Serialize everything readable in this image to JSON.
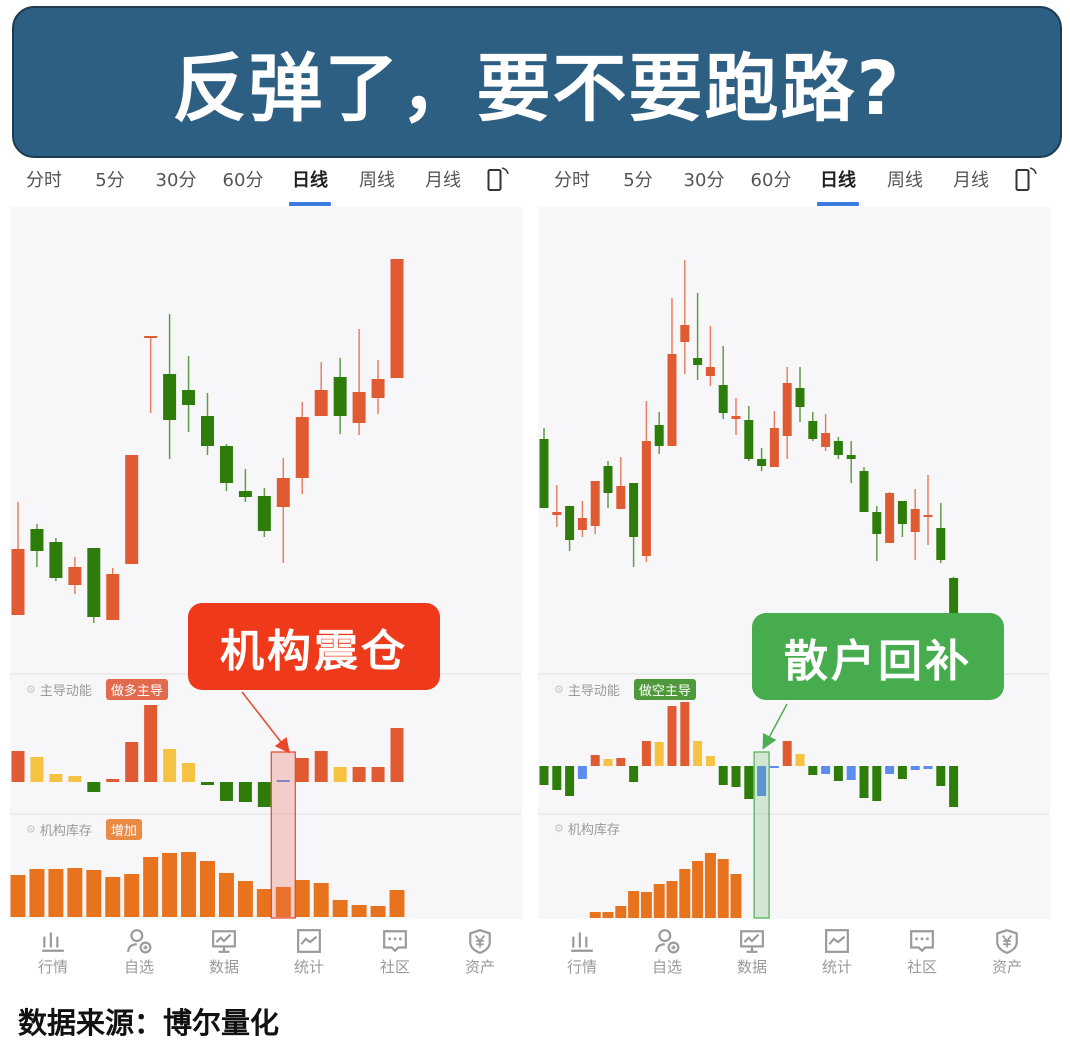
{
  "title": "反弹了，要不要跑路?",
  "tabs": [
    "分时",
    "5分",
    "30分",
    "60分",
    "日线",
    "周线",
    "月线"
  ],
  "active_tab": "日线",
  "rotate_icon": "rotate-screen-icon",
  "nav": [
    {
      "label": "行情",
      "icon": "bar-chart-icon"
    },
    {
      "label": "自选",
      "icon": "user-add-icon"
    },
    {
      "label": "数据",
      "icon": "monitor-chart-icon"
    },
    {
      "label": "统计",
      "icon": "line-chart-icon"
    },
    {
      "label": "社区",
      "icon": "chat-icon"
    },
    {
      "label": "资产",
      "icon": "yen-shield-icon"
    }
  ],
  "colors": {
    "up": "#e05a32",
    "down": "#2e7d0a",
    "weak_up": "#f5c242",
    "neutral": "#5b8def",
    "inventory": "#e8731f",
    "banner": "#2d5f82",
    "accent": "#3b7ddd"
  },
  "footer": "数据来源：博尔量化",
  "panels": [
    {
      "momentum_label": "主导动能",
      "momentum_badge": "做多主导",
      "badge_color": "#e26b4e",
      "inventory_label": "机构库存",
      "inventory_badge": "增加",
      "inv_badge_color": "#e98a45",
      "callout": "机构震仓",
      "callout_color": "#ee3a1b",
      "highlight_index": 14,
      "chart_data": {
        "type": "candlestick",
        "ylim": [
          2.8,
          49.3
        ],
        "candles": [
          [
            8.5,
            19.8,
            8.5,
            15.1
          ],
          [
            17.1,
            17.6,
            13.3,
            14.9
          ],
          [
            15.8,
            16.2,
            11.9,
            12.2
          ],
          [
            11.5,
            14.3,
            10.6,
            13.3
          ],
          [
            15.2,
            15.2,
            7.7,
            8.3
          ],
          [
            8.0,
            13.2,
            8.0,
            12.6
          ],
          [
            13.6,
            24.5,
            13.6,
            24.5
          ],
          [
            36.2,
            36.4,
            28.7,
            36.4
          ],
          [
            32.6,
            38.6,
            24.1,
            28.0
          ],
          [
            31.0,
            34.4,
            26.8,
            29.5
          ],
          [
            28.4,
            30.7,
            24.5,
            25.4
          ],
          [
            25.4,
            25.6,
            20.9,
            21.7
          ],
          [
            20.9,
            23.1,
            19.8,
            20.3
          ],
          [
            20.4,
            21.2,
            16.3,
            16.9
          ],
          [
            19.3,
            24.2,
            13.7,
            22.2
          ],
          [
            22.2,
            29.8,
            20.6,
            28.3
          ],
          [
            28.4,
            33.8,
            28.4,
            31.0
          ],
          [
            32.3,
            34.2,
            26.6,
            28.4
          ],
          [
            27.7,
            37.1,
            26.5,
            30.8
          ],
          [
            30.2,
            34.0,
            28.6,
            32.1
          ],
          [
            32.2,
            44.1,
            32.2,
            44.1
          ]
        ],
        "momentum": [
          [
            31,
            "up"
          ],
          [
            25,
            "weak_up"
          ],
          [
            8,
            "weak_up"
          ],
          [
            6,
            "weak_up"
          ],
          [
            -10,
            "down"
          ],
          [
            3,
            "up"
          ],
          [
            40,
            "up"
          ],
          [
            77,
            "up"
          ],
          [
            33,
            "weak_up"
          ],
          [
            19,
            "weak_up"
          ],
          [
            -3,
            "down"
          ],
          [
            -19,
            "down"
          ],
          [
            -20,
            "down"
          ],
          [
            -25,
            "down"
          ],
          [
            0,
            "neutral"
          ],
          [
            24,
            "up"
          ],
          [
            31,
            "up"
          ],
          [
            15,
            "weak_up"
          ],
          [
            15,
            "up"
          ],
          [
            15,
            "up"
          ],
          [
            54,
            "up"
          ]
        ],
        "inventory": [
          42,
          48,
          48,
          49,
          47,
          40,
          43,
          60,
          64,
          65,
          56,
          44,
          36,
          28,
          30,
          37,
          34,
          17,
          12,
          11,
          27
        ]
      }
    },
    {
      "momentum_label": "主导动能",
      "momentum_badge": "做空主导",
      "badge_color": "#4e9a3a",
      "inventory_label": "机构库存",
      "callout": "散户回补",
      "callout_color": "#47ac4d",
      "highlight_index": 17,
      "chart_data": {
        "type": "candlestick",
        "ylim": [
          2.8,
          49.3
        ],
        "candles": [
          [
            26.1,
            27.2,
            19.2,
            19.2
          ],
          [
            18.5,
            21.5,
            17.3,
            18.8
          ],
          [
            19.4,
            19.4,
            14.9,
            16.0
          ],
          [
            17.0,
            19.9,
            16.3,
            18.2
          ],
          [
            17.4,
            21.9,
            16.6,
            21.9
          ],
          [
            23.4,
            23.9,
            19.2,
            20.7
          ],
          [
            19.1,
            24.3,
            19.1,
            21.4
          ],
          [
            21.7,
            21.7,
            13.3,
            16.3
          ],
          [
            14.4,
            29.9,
            13.8,
            25.9
          ],
          [
            27.5,
            28.8,
            24.6,
            25.4
          ],
          [
            25.4,
            40.2,
            25.4,
            34.6
          ],
          [
            35.8,
            44.0,
            32.6,
            37.5
          ],
          [
            34.2,
            40.7,
            32.0,
            33.5
          ],
          [
            32.4,
            37.4,
            31.4,
            33.3
          ],
          [
            31.5,
            35.4,
            28.1,
            28.7
          ],
          [
            28.1,
            30.2,
            26.5,
            28.4
          ],
          [
            28.0,
            29.4,
            23.9,
            24.1
          ],
          [
            24.1,
            25.2,
            22.9,
            23.4
          ],
          [
            23.3,
            28.9,
            23.3,
            27.2
          ],
          [
            26.4,
            33.3,
            24.1,
            31.7
          ],
          [
            31.2,
            33.3,
            27.8,
            29.3
          ],
          [
            27.9,
            28.8,
            25.9,
            26.1
          ],
          [
            25.3,
            28.6,
            24.9,
            26.7
          ],
          [
            25.9,
            26.3,
            24.1,
            24.5
          ],
          [
            24.5,
            25.9,
            21.7,
            24.1
          ],
          [
            22.9,
            23.3,
            18.8,
            18.8
          ],
          [
            18.8,
            19.4,
            13.9,
            16.6
          ],
          [
            15.7,
            20.8,
            15.7,
            20.7
          ],
          [
            19.9,
            19.9,
            16.3,
            17.6
          ],
          [
            16.8,
            21.1,
            14.0,
            19.1
          ],
          [
            18.3,
            22.5,
            15.5,
            18.5
          ],
          [
            17.2,
            19.7,
            13.7,
            14.0
          ],
          [
            12.2,
            12.3,
            8.5,
            8.5
          ]
        ],
        "momentum": [
          [
            -19,
            "down"
          ],
          [
            -24,
            "down"
          ],
          [
            -30,
            "down"
          ],
          [
            -13,
            "neutral"
          ],
          [
            11,
            "up"
          ],
          [
            7,
            "weak_up"
          ],
          [
            8,
            "up"
          ],
          [
            -16,
            "down"
          ],
          [
            25,
            "up"
          ],
          [
            24,
            "weak_up"
          ],
          [
            60,
            "up"
          ],
          [
            64,
            "up"
          ],
          [
            25,
            "weak_up"
          ],
          [
            10,
            "weak_up"
          ],
          [
            -19,
            "down"
          ],
          [
            -21,
            "down"
          ],
          [
            -33,
            "down"
          ],
          [
            -30,
            "neutral"
          ],
          [
            -2,
            "neutral"
          ],
          [
            25,
            "up"
          ],
          [
            12,
            "weak_up"
          ],
          [
            -9,
            "down"
          ],
          [
            -8,
            "neutral"
          ],
          [
            -15,
            "down"
          ],
          [
            -14,
            "neutral"
          ],
          [
            -32,
            "down"
          ],
          [
            -35,
            "down"
          ],
          [
            -8,
            "neutral"
          ],
          [
            -13,
            "down"
          ],
          [
            -4,
            "neutral"
          ],
          [
            -3,
            "neutral"
          ],
          [
            -20,
            "down"
          ],
          [
            -41,
            "down"
          ]
        ],
        "inventory": [
          null,
          null,
          null,
          null,
          6,
          6,
          12,
          27,
          26,
          34,
          37,
          49,
          57,
          65,
          59,
          44,
          null,
          null,
          null,
          null,
          null,
          null,
          null,
          null,
          null,
          null,
          null,
          null,
          null,
          null,
          null,
          null,
          null
        ]
      }
    }
  ]
}
